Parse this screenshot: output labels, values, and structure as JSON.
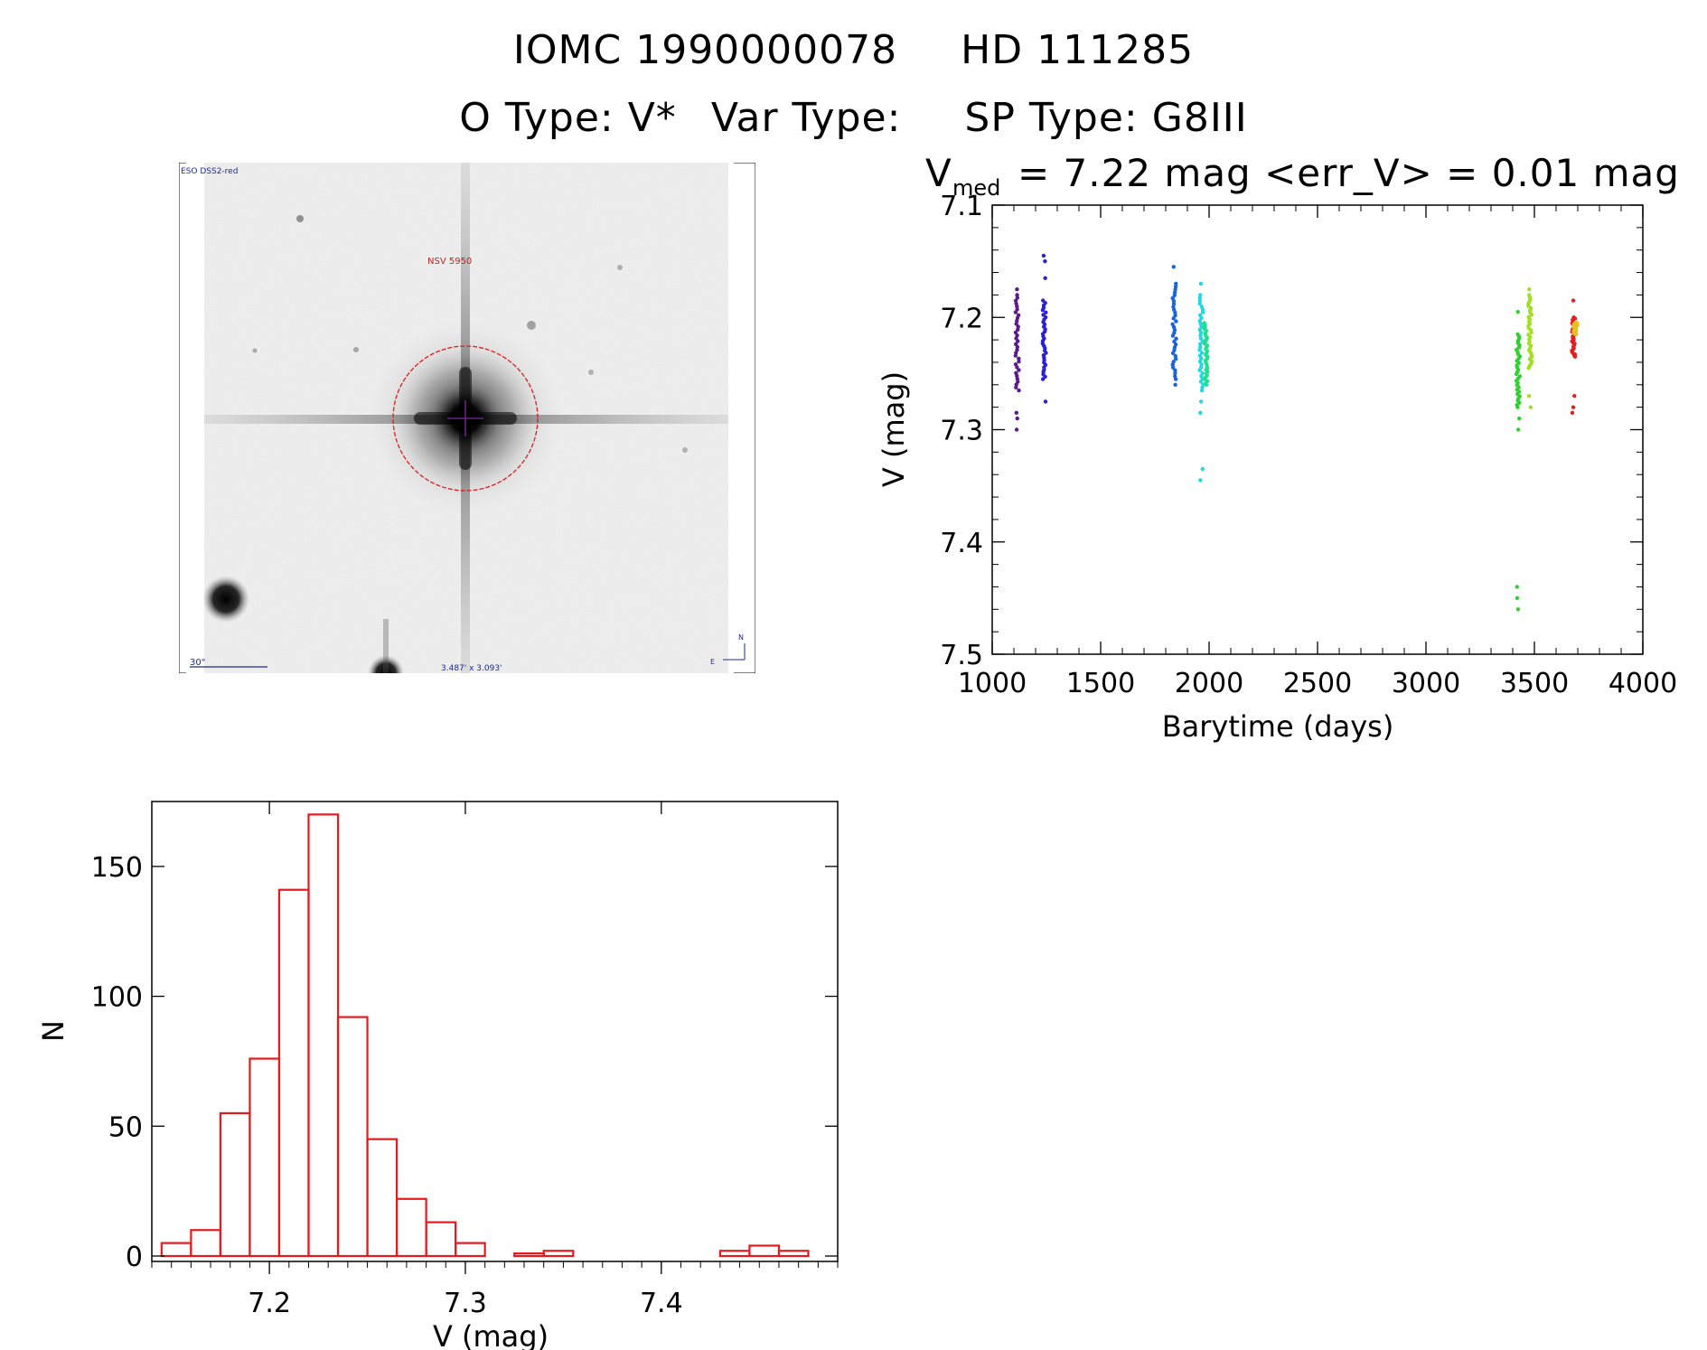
{
  "header": {
    "line1_id": "IOMC 1990000078",
    "line1_hd": "HD 111285",
    "line2_otype": "O Type: V*",
    "line2_vartype": "Var Type:",
    "line2_sptype": "SP Type: G8III"
  },
  "image_panel": {
    "survey_label": "ESO DSS2-red",
    "target_label": "NSV 5950",
    "scale_label": "30\"",
    "size_label": "3.487' x 3.093'",
    "north_label": "N",
    "east_label": "E",
    "colors": {
      "circle": "#d42020",
      "labels": "#1a2a9a",
      "target": "#c02020"
    }
  },
  "chart_data": [
    {
      "type": "scatter",
      "title_v": "V",
      "title_sub": "med",
      "title_rest": "= 7.22 mag <err_V> = 0.01 mag",
      "xlabel": "Barytime (days)",
      "ylabel": "V (mag)",
      "xlim": [
        1000,
        4000
      ],
      "ylim": [
        7.5,
        7.1
      ],
      "y_inverted": true,
      "xticks": [
        1000,
        1500,
        2000,
        2500,
        3000,
        3500,
        4000
      ],
      "yticks": [
        7.1,
        7.2,
        7.3,
        7.4,
        7.5
      ],
      "groups": [
        {
          "x": 1115,
          "color": "#5a1a8a",
          "ymin": 7.18,
          "ymax": 7.265,
          "outliers": [
            7.175,
            7.285,
            7.29,
            7.3
          ]
        },
        {
          "x": 1240,
          "color": "#2a20d8",
          "ymin": 7.185,
          "ymax": 7.255,
          "outliers": [
            7.145,
            7.15,
            7.165,
            7.275
          ]
        },
        {
          "x": 1840,
          "color": "#1a64d8",
          "ymin": 7.17,
          "ymax": 7.255,
          "outliers": [
            7.155,
            7.26
          ]
        },
        {
          "x": 1965,
          "color": "#20d8e0",
          "ymin": 7.18,
          "ymax": 7.265,
          "outliers": [
            7.17,
            7.275,
            7.285,
            7.335,
            7.345
          ]
        },
        {
          "x": 1985,
          "color": "#20e090",
          "ymin": 7.205,
          "ymax": 7.26,
          "outliers": []
        },
        {
          "x": 3425,
          "color": "#30d030",
          "ymin": 7.215,
          "ymax": 7.28,
          "outliers": [
            7.195,
            7.29,
            7.3,
            7.44,
            7.45,
            7.46
          ]
        },
        {
          "x": 3480,
          "color": "#a0e020",
          "ymin": 7.18,
          "ymax": 7.245,
          "outliers": [
            7.175,
            7.27,
            7.28
          ]
        },
        {
          "x": 3680,
          "color": "#e02020",
          "ymin": 7.2,
          "ymax": 7.235,
          "outliers": [
            7.185,
            7.27,
            7.28,
            7.285
          ]
        },
        {
          "x": 3690,
          "color": "#e8c020",
          "ymin": 7.205,
          "ymax": 7.215,
          "outliers": []
        }
      ]
    },
    {
      "type": "bar",
      "subtype": "histogram",
      "xlabel": "V (mag)",
      "ylabel": "N",
      "xlim": [
        7.14,
        7.49
      ],
      "ylim": [
        0,
        175
      ],
      "xticks": [
        7.2,
        7.3,
        7.4
      ],
      "yticks": [
        0,
        50,
        100,
        150
      ],
      "bin_width": 0.015,
      "bin_start": 7.145,
      "counts": [
        5,
        10,
        55,
        76,
        141,
        170,
        92,
        45,
        22,
        13,
        5,
        0,
        1,
        2,
        0,
        0,
        0,
        0,
        0,
        2,
        4,
        2
      ],
      "color": "#e41a1c"
    }
  ]
}
